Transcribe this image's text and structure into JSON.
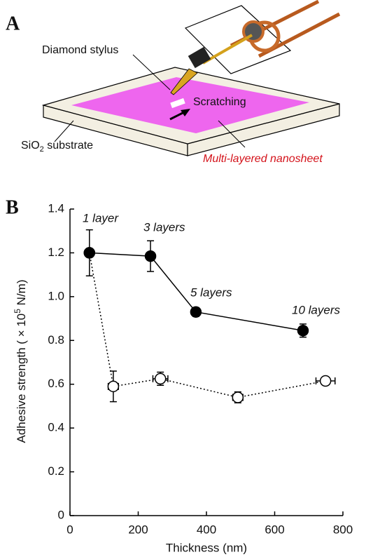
{
  "panel_labels": [
    "A",
    "B"
  ],
  "panel_a": {
    "stylus": "Diamond stylus",
    "scratching": "Scratching",
    "substrate": {
      "main": "SiO",
      "sub": "2",
      "rest": " substrate"
    },
    "nanosheet": "Multi-layered nanosheet"
  },
  "chart_data": {
    "type": "line",
    "x_label": "Thickness (nm)",
    "y_label": {
      "main": "Adhesive strength ( × 10",
      "sup": "5",
      "rest": " N/m)"
    },
    "xlim": [
      0,
      800
    ],
    "xticks": [
      0,
      200,
      400,
      600,
      800
    ],
    "ylim": [
      0,
      1.4
    ],
    "yticks": [
      0,
      0.2,
      0.4,
      0.6,
      0.8,
      {
        "value": 1.0,
        "label": "1.0"
      },
      1.2,
      1.4
    ],
    "annotations": [
      "1 layer",
      "3 layers",
      "5 layers",
      "10 layers"
    ],
    "series": [
      {
        "color": "#000000",
        "marker": "filled",
        "linestyle": "solid",
        "x": [
          57,
          236,
          369,
          683
        ],
        "values": [
          1.2,
          1.185,
          0.93,
          0.845
        ],
        "yerr": [
          0.105,
          0.07,
          0.02,
          0.03
        ]
      },
      {
        "color": "#000000",
        "marker": "open",
        "linestyle": "dotted",
        "x": [
          57,
          127,
          265,
          492,
          749
        ],
        "values": [
          1.2,
          0.59,
          0.625,
          0.54,
          0.615
        ],
        "yerr": [
          0,
          0.07,
          0.03,
          0.025,
          0.015
        ],
        "xerr": [
          0,
          15,
          22,
          15,
          28
        ]
      }
    ]
  }
}
